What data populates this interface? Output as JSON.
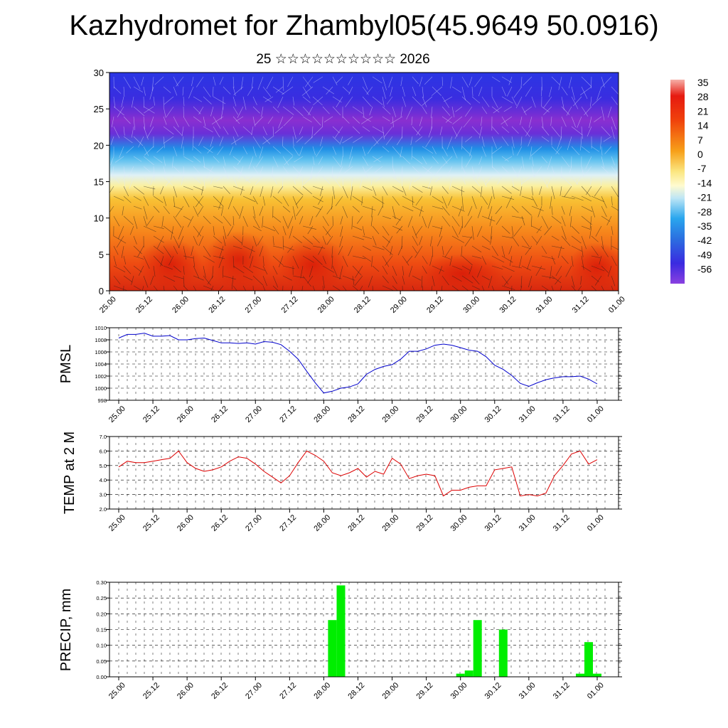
{
  "title": "Kazhydromet for Zhambyl05(45.9649 50.0916)",
  "subtitle": "25 ☆☆☆☆☆☆☆☆☆☆ 2026",
  "chart_data": [
    {
      "type": "heatmap",
      "ylim": [
        0,
        30
      ],
      "yticks": [
        "0",
        "5",
        "10",
        "15",
        "20",
        "25",
        "30"
      ],
      "xticks": [
        "25.00",
        "25.12",
        "26.00",
        "26.12",
        "27.00",
        "27.12",
        "28.00",
        "28.12",
        "29.00",
        "29.12",
        "30.00",
        "30.12",
        "31.00",
        "31.12",
        "01.00"
      ],
      "colorbar_labels": [
        "35",
        "28",
        "21",
        "14",
        "7",
        "0",
        "-7",
        "-14",
        "-21",
        "-28",
        "-35",
        "-42",
        "-49",
        "-56"
      ],
      "colors": {
        "warm": "#e2301a",
        "mid": "#f7c335",
        "neutral": "#fffbd0",
        "cool": "#2c9fe6",
        "cold": "#3b22d8",
        "coldest": "#7a2bd4"
      }
    },
    {
      "type": "line",
      "ylabel": "PMSL",
      "ylim": [
        998,
        1010
      ],
      "yticks": [
        "998",
        "1000",
        "1002",
        "1004",
        "1006",
        "1008",
        "1010"
      ],
      "xticks": [
        "25.00",
        "25.12",
        "26.00",
        "26.12",
        "27.00",
        "27.12",
        "28.00",
        "28.12",
        "29.00",
        "29.12",
        "30.00",
        "30.12",
        "31.00",
        "31.12",
        "01.00"
      ],
      "color": "#0000cc",
      "values": [
        1008.3,
        1008.9,
        1008.9,
        1009.1,
        1008.6,
        1008.6,
        1008.7,
        1008.0,
        1008.0,
        1008.2,
        1008.3,
        1007.9,
        1007.5,
        1007.5,
        1007.4,
        1007.5,
        1007.3,
        1007.7,
        1007.6,
        1007.2,
        1006.1,
        1004.8,
        1002.8,
        1000.9,
        999.2,
        999.5,
        1000.0,
        1000.2,
        1000.7,
        1002.3,
        1003.1,
        1003.6,
        1003.9,
        1004.8,
        1006.1,
        1006.1,
        1006.5,
        1007.1,
        1007.3,
        1007.1,
        1006.7,
        1006.3,
        1006.1,
        1005.2,
        1003.8,
        1003.1,
        1002.1,
        1000.8,
        1000.3,
        1000.9,
        1001.4,
        1001.7,
        1001.9,
        1001.9,
        1002.0,
        1001.5,
        1000.7
      ]
    },
    {
      "type": "line",
      "ylabel": "TEMP at 2 M",
      "ylim": [
        2.0,
        7.0
      ],
      "yticks": [
        "2.0",
        "3.0",
        "4.0",
        "5.0",
        "6.0",
        "7.0"
      ],
      "xticks": [
        "25.00",
        "25.12",
        "26.00",
        "26.12",
        "27.00",
        "27.12",
        "28.00",
        "28.12",
        "29.00",
        "29.12",
        "30.00",
        "30.12",
        "31.00",
        "31.12",
        "01.00"
      ],
      "color": "#dd0000",
      "values": [
        4.9,
        5.3,
        5.2,
        5.2,
        5.3,
        5.4,
        5.5,
        6.0,
        5.2,
        4.8,
        4.6,
        4.7,
        4.9,
        5.3,
        5.6,
        5.5,
        5.1,
        4.6,
        4.2,
        3.8,
        4.3,
        5.2,
        6.0,
        5.7,
        5.3,
        4.5,
        4.3,
        4.5,
        4.8,
        4.2,
        4.6,
        4.4,
        5.5,
        5.1,
        4.1,
        4.3,
        4.4,
        4.3,
        2.9,
        3.3,
        3.3,
        3.5,
        3.6,
        3.6,
        4.7,
        4.8,
        4.9,
        2.9,
        3.0,
        2.9,
        3.1,
        4.3,
        5.0,
        5.8,
        6.0,
        5.1,
        5.4
      ]
    },
    {
      "type": "bar",
      "ylabel": "PRECIP, mm",
      "ylim": [
        0,
        0.3
      ],
      "yticks": [
        "0.00",
        "0.05",
        "0.10",
        "0.15",
        "0.20",
        "0.25",
        "0.30"
      ],
      "xticks": [
        "25.00",
        "25.12",
        "26.00",
        "26.12",
        "27.00",
        "27.12",
        "28.00",
        "28.12",
        "29.00",
        "29.12",
        "30.00",
        "30.12",
        "31.00",
        "31.12",
        "01.00"
      ],
      "color": "#00ee00",
      "values": [
        0,
        0,
        0,
        0,
        0,
        0,
        0,
        0,
        0,
        0,
        0,
        0,
        0,
        0,
        0,
        0,
        0,
        0,
        0,
        0,
        0,
        0,
        0,
        0,
        0,
        0.18,
        0.29,
        0,
        0,
        0,
        0,
        0,
        0,
        0,
        0,
        0,
        0,
        0,
        0,
        0,
        0.01,
        0.02,
        0.18,
        0,
        0,
        0.15,
        0,
        0,
        0,
        0,
        0,
        0,
        0,
        0,
        0.01,
        0.11,
        0.01
      ]
    }
  ]
}
